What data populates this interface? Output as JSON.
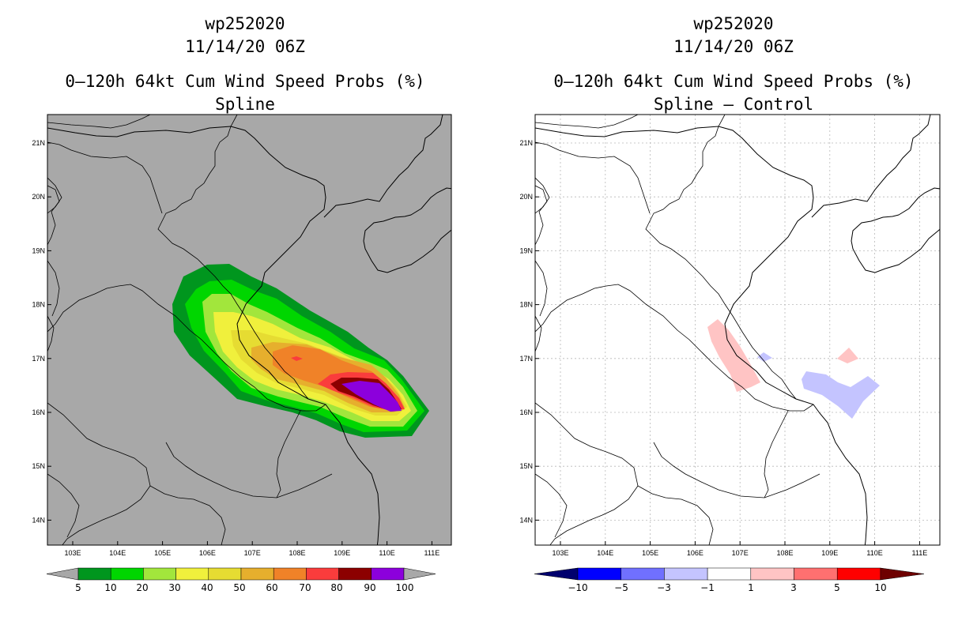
{
  "left_panel": {
    "storm": "wp252020",
    "datetime": "11/14/20 06Z",
    "title": "0–120h 64kt Cum Wind Speed Probs (%)",
    "subtitle": "Spline",
    "lon_labels": [
      "103E",
      "104E",
      "105E",
      "106E",
      "107E",
      "108E",
      "109E",
      "110E",
      "111E"
    ],
    "lat_labels": [
      "21N",
      "20N",
      "19N",
      "18N",
      "17N",
      "16N",
      "15N",
      "14N"
    ],
    "colorbar": {
      "colors": [
        "#a8a8a8",
        "#00961e",
        "#00d600",
        "#a2e63c",
        "#f0f03c",
        "#e6dc32",
        "#e6af2d",
        "#f08228",
        "#fa3c3c",
        "#8c0000",
        "#8c00dc",
        "#a8a8a8"
      ],
      "labels": [
        "5",
        "10",
        "20",
        "30",
        "40",
        "50",
        "60",
        "70",
        "80",
        "90",
        "100"
      ]
    }
  },
  "right_panel": {
    "storm": "wp252020",
    "datetime": "11/14/20 06Z",
    "title": "0–120h 64kt Cum Wind Speed Probs (%)",
    "subtitle": "Spline – Control",
    "lon_labels": [
      "103E",
      "104E",
      "105E",
      "106E",
      "107E",
      "108E",
      "109E",
      "110E",
      "111E"
    ],
    "lat_labels": [
      "21N",
      "20N",
      "19N",
      "18N",
      "17N",
      "16N",
      "15N",
      "14N"
    ],
    "colorbar": {
      "colors": [
        "#00006e",
        "#0000ff",
        "#7070ff",
        "#c4c4ff",
        "#ffffff",
        "#ffc4c4",
        "#ff7070",
        "#ff0000",
        "#6e0000"
      ],
      "labels": [
        "−10",
        "−5",
        "−3",
        "−1",
        "1",
        "3",
        "5",
        "10"
      ]
    }
  }
}
